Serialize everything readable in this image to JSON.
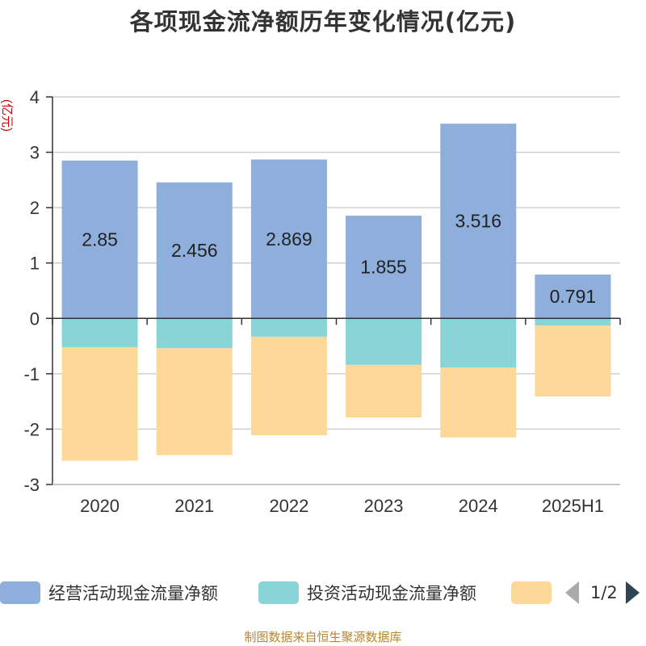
{
  "title": "各项现金流净额历年变化情况(亿元)",
  "footer": "制图数据来自恒生聚源数据库",
  "pager": {
    "text": "1/2"
  },
  "chart_data": {
    "type": "bar",
    "stacked": true,
    "title": "各项现金流净额历年变化情况(亿元)",
    "ylabel": "(亿元)",
    "ylim": [
      -3,
      4
    ],
    "yticks": [
      "4",
      "3",
      "2",
      "1",
      "0",
      "-1",
      "-2",
      "-3"
    ],
    "ytick_values": [
      4,
      3,
      2,
      1,
      0,
      -1,
      -2,
      -3
    ],
    "grid": true,
    "legend_position": "bottom",
    "categories": [
      "2020",
      "2021",
      "2022",
      "2023",
      "2024",
      "2025H1"
    ],
    "series": [
      {
        "name": "经营活动现金流量净额",
        "color": "#8eaedc",
        "values": [
          2.85,
          2.456,
          2.869,
          1.855,
          3.516,
          0.791
        ],
        "labels": [
          "2.85",
          "2.456",
          "2.869",
          "1.855",
          "3.516",
          "0.791"
        ]
      },
      {
        "name": "投资活动现金流量净额",
        "color": "#88d4d6",
        "values": [
          -0.52,
          -0.54,
          -0.33,
          -0.84,
          -0.89,
          -0.13
        ]
      },
      {
        "name": "",
        "color": "#fdd899",
        "values": [
          -2.05,
          -1.93,
          -1.78,
          -0.95,
          -1.26,
          -1.28
        ]
      }
    ]
  }
}
